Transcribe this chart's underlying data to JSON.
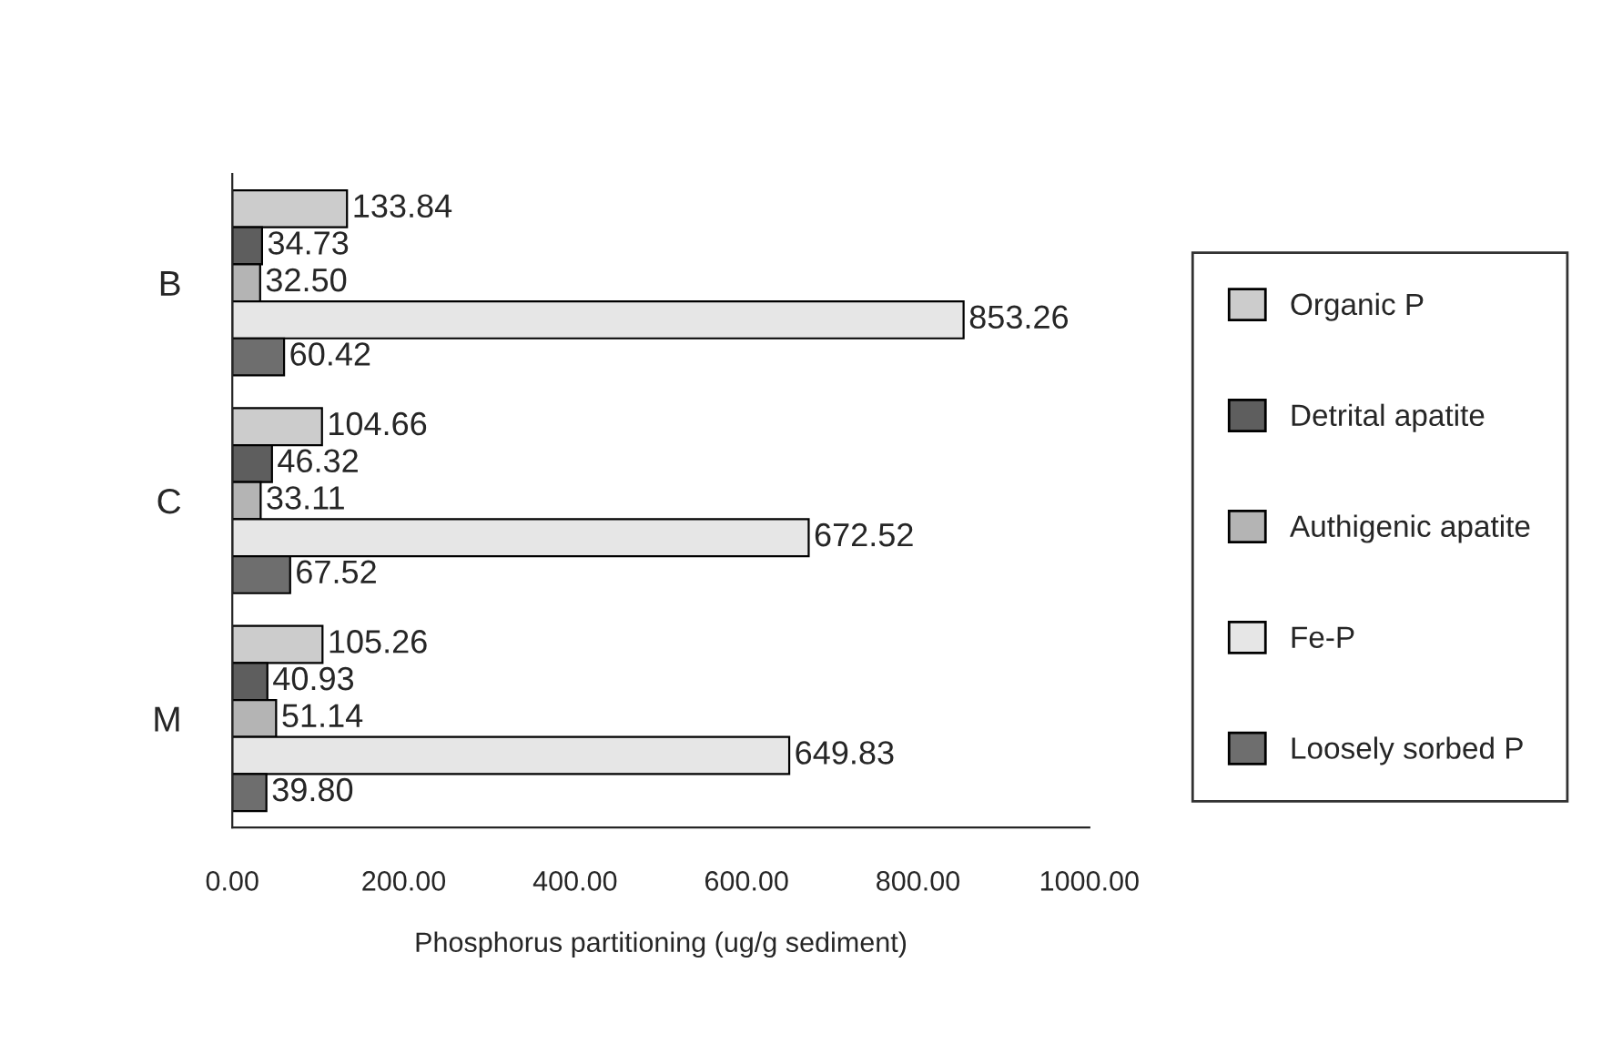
{
  "chart_data": {
    "type": "bar",
    "orientation": "horizontal",
    "xlabel": "Phosphorus partitioning (ug/g sediment)",
    "categories": [
      "B",
      "C",
      "M"
    ],
    "series": [
      {
        "name": "Organic P",
        "color": "#cccccc",
        "values": [
          133.84,
          104.66,
          105.26
        ],
        "value_labels": [
          "133.84",
          "104.66",
          "105.26"
        ]
      },
      {
        "name": "Detrital apatite",
        "color": "#5e5e5e",
        "values": [
          34.73,
          46.32,
          40.93
        ],
        "value_labels": [
          "34.73",
          "46.32",
          "40.93"
        ]
      },
      {
        "name": "Authigenic apatite",
        "color": "#b4b4b4",
        "values": [
          32.5,
          33.11,
          51.14
        ],
        "value_labels": [
          "32.50",
          "33.11",
          "51.14"
        ]
      },
      {
        "name": "Fe-P",
        "color": "#e6e6e6",
        "values": [
          853.26,
          672.52,
          649.83
        ],
        "value_labels": [
          "853.26",
          "672.52",
          "649.83"
        ]
      },
      {
        "name": "Loosely sorbed P",
        "color": "#6e6e6e",
        "values": [
          60.42,
          67.52,
          39.8
        ],
        "value_labels": [
          "60.42",
          "67.52",
          "39.80"
        ]
      }
    ],
    "xlim": [
      0,
      1000
    ],
    "xticks": [
      {
        "value": 0,
        "label": "0.00"
      },
      {
        "value": 200,
        "label": "200.00"
      },
      {
        "value": 400,
        "label": "400.00"
      },
      {
        "value": 600,
        "label": "600.00"
      },
      {
        "value": 800,
        "label": "800.00"
      },
      {
        "value": 1000,
        "label": "1000.00"
      }
    ],
    "grid": false,
    "legend": "right"
  }
}
